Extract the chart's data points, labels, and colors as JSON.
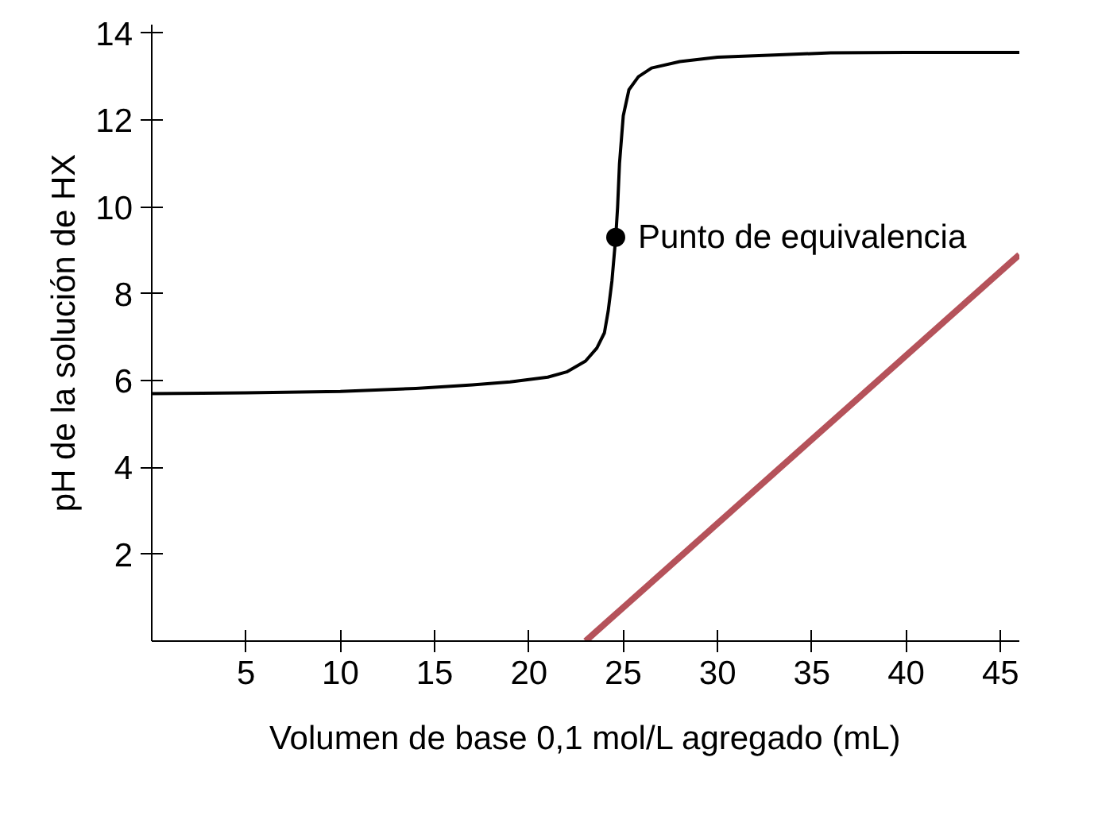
{
  "chart_data": {
    "type": "line",
    "xlabel": "Volumen de base 0,1 mol/L agregado (mL)",
    "ylabel": "pH de la solución de HX",
    "xlim": [
      0,
      46
    ],
    "ylim": [
      0,
      14.2
    ],
    "xticks": [
      5,
      10,
      15,
      20,
      25,
      30,
      35,
      40,
      45
    ],
    "yticks": [
      2,
      4,
      6,
      8,
      10,
      12,
      14
    ],
    "grid": false,
    "series": [
      {
        "color": "#000000",
        "marker": "none",
        "x": [
          0,
          5,
          10,
          14,
          17,
          19,
          21,
          22,
          23,
          23.6,
          24,
          24.2,
          24.4,
          24.5,
          24.6,
          24.7,
          24.8,
          25,
          25.3,
          25.8,
          26.5,
          28,
          30,
          33,
          36,
          40,
          46
        ],
        "values": [
          5.7,
          5.72,
          5.75,
          5.82,
          5.9,
          5.97,
          6.08,
          6.2,
          6.45,
          6.75,
          7.1,
          7.6,
          8.3,
          8.8,
          9.3,
          10,
          11,
          12.1,
          12.7,
          13,
          13.2,
          13.35,
          13.45,
          13.5,
          13.55,
          13.56,
          13.56
        ]
      },
      {
        "type": "scatter",
        "color": "#000000",
        "marker": "circle",
        "x": [
          24.6
        ],
        "values": [
          9.3
        ]
      },
      {
        "color": "#b5525a",
        "marker": "none",
        "x": [
          23.0,
          46
        ],
        "values": [
          0,
          8.9
        ]
      }
    ],
    "annotations": [
      {
        "text": "Punto de equivalencia",
        "x": 24.6,
        "y": 9.3
      }
    ]
  }
}
